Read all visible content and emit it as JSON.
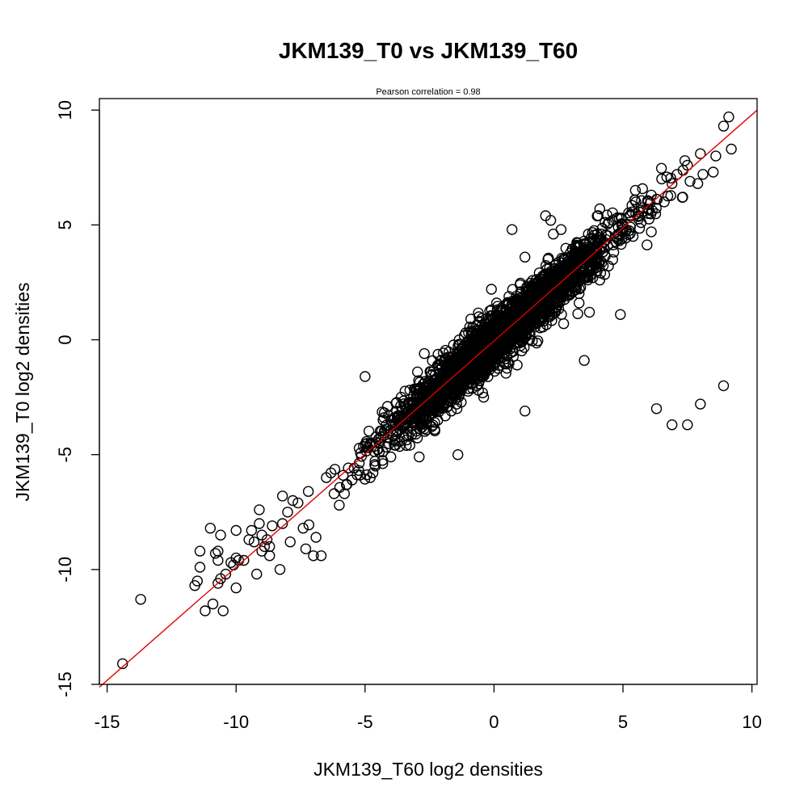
{
  "chart_data": {
    "type": "scatter",
    "title": "JKM139_T0 vs JKM139_T60",
    "subtitle": "Pearson correlation =  0.98",
    "xlabel": "JKM139_T60 log2 densities",
    "ylabel": "JKM139_T0 log2 densities",
    "xlim": [
      -15.3,
      10.2
    ],
    "ylim": [
      -15,
      10.5
    ],
    "xticks": [
      -15,
      -10,
      -5,
      0,
      5,
      10
    ],
    "yticks": [
      -15,
      -10,
      -5,
      0,
      5,
      10
    ],
    "grid": false,
    "legend": "none",
    "marker": "open-circle",
    "point_color": "#000000",
    "line_color": "#e00000",
    "fit_line": {
      "slope": 0.985,
      "intercept": -0.05
    },
    "dense_cloud": {
      "x_range": [
        -7.5,
        7.4
      ],
      "slope": 0.985,
      "intercept": -0.05,
      "spread_y": 0.55,
      "count": 2600,
      "seed": 139
    },
    "points": [
      [
        -14.4,
        -14.1
      ],
      [
        -13.7,
        -11.3
      ],
      [
        -11.2,
        -11.8
      ],
      [
        -11.0,
        -8.2
      ],
      [
        -10.9,
        -11.5
      ],
      [
        -11.6,
        -10.7
      ],
      [
        -11.5,
        -10.5
      ],
      [
        -11.4,
        -9.9
      ],
      [
        -11.4,
        -9.2
      ],
      [
        -10.7,
        -10.6
      ],
      [
        -10.6,
        -10.4
      ],
      [
        -10.7,
        -9.6
      ],
      [
        -10.8,
        -9.3
      ],
      [
        -10.7,
        -9.2
      ],
      [
        -10.6,
        -8.5
      ],
      [
        -10.5,
        -11.8
      ],
      [
        -10.4,
        -10.2
      ],
      [
        -10.1,
        -9.8
      ],
      [
        -10.0,
        -9.5
      ],
      [
        -10.0,
        -10.8
      ],
      [
        -10.2,
        -9.7
      ],
      [
        -10.0,
        -8.3
      ],
      [
        -9.9,
        -9.6
      ],
      [
        -9.7,
        -9.6
      ],
      [
        -9.5,
        -8.7
      ],
      [
        -9.4,
        -8.3
      ],
      [
        -9.3,
        -8.8
      ],
      [
        -9.2,
        -10.2
      ],
      [
        -9.1,
        -8.0
      ],
      [
        -9.1,
        -7.4
      ],
      [
        -9.0,
        -8.5
      ],
      [
        -9.0,
        -9.2
      ],
      [
        -8.9,
        -9.0
      ],
      [
        -8.8,
        -8.7
      ],
      [
        -8.7,
        -9.4
      ],
      [
        -8.7,
        -9.0
      ],
      [
        -8.6,
        -8.1
      ],
      [
        -8.3,
        -10.0
      ],
      [
        -8.2,
        -8.0
      ],
      [
        -8.2,
        -6.8
      ],
      [
        -8.0,
        -7.5
      ],
      [
        -7.9,
        -8.8
      ],
      [
        -7.8,
        -7.0
      ],
      [
        -7.6,
        -7.1
      ],
      [
        -7.4,
        -8.2
      ],
      [
        -7.3,
        -9.1
      ],
      [
        -7.2,
        -6.6
      ],
      [
        -7.0,
        -9.4
      ],
      [
        -6.9,
        -8.6
      ],
      [
        -6.7,
        -9.4
      ],
      [
        -6.5,
        -6.0
      ],
      [
        -6.2,
        -6.7
      ],
      [
        -6.0,
        -7.2
      ],
      [
        -5.8,
        -6.7
      ],
      [
        -5.7,
        -6.3
      ],
      [
        -5.5,
        -6.1
      ],
      [
        -5.0,
        -1.6
      ],
      [
        -4.8,
        -6.0
      ],
      [
        -4.6,
        -5.5
      ],
      [
        -4.3,
        -3.5
      ],
      [
        -4.0,
        -5.1
      ],
      [
        -3.6,
        -2.5
      ],
      [
        -3.5,
        -4.2
      ],
      [
        -3.4,
        -4.6
      ],
      [
        -2.9,
        -2.1
      ],
      [
        -2.9,
        -5.1
      ],
      [
        -2.7,
        -0.6
      ],
      [
        -2.5,
        -2.4
      ],
      [
        -2.3,
        -3.9
      ],
      [
        -2.3,
        -3.6
      ],
      [
        -2.1,
        -1.3
      ],
      [
        -1.6,
        -1.0
      ],
      [
        -1.4,
        -5.0
      ],
      [
        -1.2,
        -2.0
      ],
      [
        -1.1,
        0.3
      ],
      [
        -1.0,
        -1.5
      ],
      [
        -0.9,
        0.9
      ],
      [
        -0.8,
        -1.1
      ],
      [
        -0.6,
        -2.2
      ],
      [
        -0.4,
        -2.5
      ],
      [
        -0.3,
        0.9
      ],
      [
        -0.1,
        2.2
      ],
      [
        0.1,
        1.6
      ],
      [
        0.3,
        -0.5
      ],
      [
        0.6,
        1.0
      ],
      [
        0.7,
        4.8
      ],
      [
        0.9,
        -1.1
      ],
      [
        1.2,
        -3.1
      ],
      [
        1.2,
        3.6
      ],
      [
        1.3,
        1.4
      ],
      [
        1.6,
        2.2
      ],
      [
        1.8,
        0.8
      ],
      [
        2.0,
        5.4
      ],
      [
        2.2,
        5.2
      ],
      [
        2.3,
        4.6
      ],
      [
        2.5,
        3.1
      ],
      [
        2.6,
        4.8
      ],
      [
        2.7,
        0.7
      ],
      [
        3.3,
        1.6
      ],
      [
        3.2,
        2.3
      ],
      [
        3.5,
        2.7
      ],
      [
        3.5,
        4.3
      ],
      [
        3.5,
        -0.9
      ],
      [
        3.7,
        1.2
      ],
      [
        4.1,
        5.7
      ],
      [
        4.1,
        2.6
      ],
      [
        4.6,
        5.2
      ],
      [
        4.9,
        1.1
      ],
      [
        5.0,
        4.7
      ],
      [
        5.5,
        6.0
      ],
      [
        5.7,
        5.1
      ],
      [
        6.1,
        6.3
      ],
      [
        6.1,
        4.7
      ],
      [
        6.3,
        -3.0
      ],
      [
        6.5,
        7.0
      ],
      [
        6.6,
        6.0
      ],
      [
        6.9,
        -3.7
      ],
      [
        6.9,
        6.8
      ],
      [
        7.1,
        7.2
      ],
      [
        7.3,
        6.2
      ],
      [
        7.5,
        -3.7
      ],
      [
        7.4,
        7.8
      ],
      [
        7.5,
        7.6
      ],
      [
        7.6,
        6.9
      ],
      [
        7.9,
        6.8
      ],
      [
        8.0,
        8.1
      ],
      [
        8.0,
        -2.8
      ],
      [
        8.1,
        7.2
      ],
      [
        8.5,
        7.3
      ],
      [
        8.6,
        8.0
      ],
      [
        8.9,
        -2.0
      ],
      [
        8.9,
        9.3
      ],
      [
        9.1,
        9.7
      ],
      [
        9.2,
        8.3
      ]
    ]
  }
}
